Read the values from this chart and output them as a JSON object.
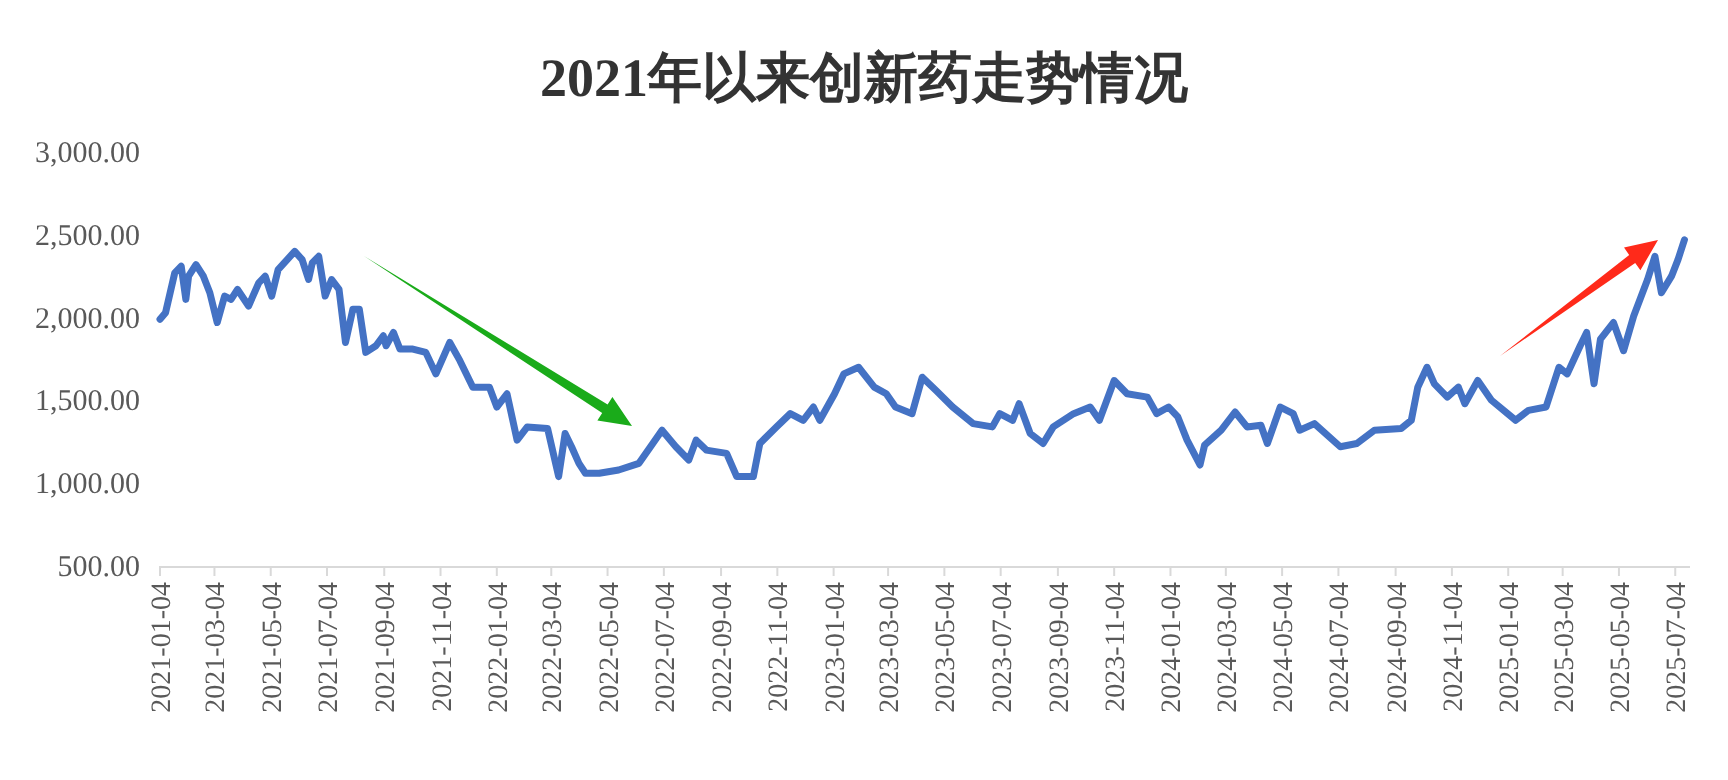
{
  "chart_data": {
    "type": "line",
    "title": "2021年以来创新药走势情况",
    "x": [
      "2021-01-04",
      "2021-01-10",
      "2021-01-20",
      "2021-01-27",
      "2021-02-01",
      "2021-02-04",
      "2021-02-12",
      "2021-02-20",
      "2021-02-27",
      "2021-03-07",
      "2021-03-15",
      "2021-03-22",
      "2021-03-29",
      "2021-04-10",
      "2021-04-21",
      "2021-04-28",
      "2021-05-05",
      "2021-05-12",
      "2021-05-30",
      "2021-06-07",
      "2021-06-14",
      "2021-06-18",
      "2021-06-25",
      "2021-07-02",
      "2021-07-09",
      "2021-07-17",
      "2021-07-24",
      "2021-08-01",
      "2021-08-08",
      "2021-08-15",
      "2021-08-26",
      "2021-09-03",
      "2021-09-06",
      "2021-09-14",
      "2021-09-21",
      "2021-10-05",
      "2021-10-19",
      "2021-10-30",
      "2021-11-14",
      "2021-11-25",
      "2021-12-09",
      "2021-12-27",
      "2022-01-04",
      "2022-01-15",
      "2022-01-26",
      "2022-02-06",
      "2022-02-28",
      "2022-03-12",
      "2022-03-19",
      "2022-03-26",
      "2022-04-03",
      "2022-04-10",
      "2022-04-25",
      "2022-05-16",
      "2022-06-07",
      "2022-06-22",
      "2022-07-02",
      "2022-07-17",
      "2022-07-31",
      "2022-08-08",
      "2022-08-19",
      "2022-09-10",
      "2022-09-21",
      "2022-10-09",
      "2022-10-16",
      "2022-11-03",
      "2022-11-18",
      "2022-12-02",
      "2022-12-13",
      "2022-12-20",
      "2023-01-05",
      "2023-01-15",
      "2023-01-31",
      "2023-02-17",
      "2023-03-02",
      "2023-03-12",
      "2023-03-30",
      "2023-04-10",
      "2023-04-25",
      "2023-05-13",
      "2023-06-04",
      "2023-06-25",
      "2023-07-03",
      "2023-07-17",
      "2023-07-24",
      "2023-08-05",
      "2023-08-19",
      "2023-08-30",
      "2023-09-21",
      "2023-10-09",
      "2023-10-19",
      "2023-11-04",
      "2023-11-18",
      "2023-12-10",
      "2023-12-20",
      "2024-01-02",
      "2024-01-12",
      "2024-01-22",
      "2024-02-05",
      "2024-02-10",
      "2024-02-28",
      "2024-03-14",
      "2024-03-27",
      "2024-04-11",
      "2024-04-18",
      "2024-05-02",
      "2024-05-16",
      "2024-05-23",
      "2024-06-08",
      "2024-07-06",
      "2024-07-24",
      "2024-08-12",
      "2024-09-10",
      "2024-09-21",
      "2024-09-28",
      "2024-10-08",
      "2024-10-16",
      "2024-10-30",
      "2024-11-11",
      "2024-11-18",
      "2024-12-02",
      "2024-12-17",
      "2025-01-12",
      "2025-01-26",
      "2025-02-14",
      "2025-02-28",
      "2025-03-09",
      "2025-03-23",
      "2025-03-30",
      "2025-04-07",
      "2025-04-14",
      "2025-04-28",
      "2025-05-09",
      "2025-05-20",
      "2025-06-04",
      "2025-06-12",
      "2025-06-19",
      "2025-06-30",
      "2025-07-07",
      "2025-07-14"
    ],
    "series": [
      {
        "color": "#4472c4",
        "values": [
          1990,
          2030,
          2270,
          2310,
          2110,
          2250,
          2320,
          2250,
          2150,
          1970,
          2130,
          2110,
          2170,
          2070,
          2210,
          2250,
          2130,
          2290,
          2400,
          2350,
          2230,
          2330,
          2370,
          2130,
          2230,
          2170,
          1850,
          2050,
          2050,
          1790,
          1830,
          1890,
          1830,
          1910,
          1810,
          1810,
          1790,
          1660,
          1850,
          1740,
          1580,
          1580,
          1460,
          1540,
          1260,
          1340,
          1330,
          1040,
          1300,
          1220,
          1120,
          1060,
          1060,
          1080,
          1120,
          1240,
          1320,
          1220,
          1140,
          1260,
          1200,
          1180,
          1040,
          1040,
          1240,
          1340,
          1420,
          1380,
          1460,
          1380,
          1540,
          1660,
          1700,
          1580,
          1540,
          1460,
          1420,
          1640,
          1560,
          1460,
          1360,
          1340,
          1420,
          1380,
          1480,
          1300,
          1240,
          1340,
          1420,
          1460,
          1380,
          1620,
          1540,
          1520,
          1420,
          1460,
          1400,
          1260,
          1110,
          1230,
          1320,
          1430,
          1340,
          1350,
          1240,
          1460,
          1420,
          1320,
          1360,
          1220,
          1240,
          1320,
          1330,
          1380,
          1580,
          1700,
          1600,
          1520,
          1580,
          1480,
          1620,
          1500,
          1380,
          1440,
          1460,
          1700,
          1660,
          1830,
          1910,
          1600,
          1870,
          1970,
          1800,
          2010,
          2230,
          2370,
          2150,
          2250,
          2350,
          2470
        ]
      }
    ],
    "xlim": [
      "2021-01-04",
      "2025-07-20"
    ],
    "xticks": [
      "2021-01-04",
      "2021-03-04",
      "2021-05-04",
      "2021-07-04",
      "2021-09-04",
      "2021-11-04",
      "2022-01-04",
      "2022-03-04",
      "2022-05-04",
      "2022-07-04",
      "2022-09-04",
      "2022-11-04",
      "2023-01-04",
      "2023-03-04",
      "2023-05-04",
      "2023-07-04",
      "2023-09-04",
      "2023-11-04",
      "2024-01-04",
      "2024-03-04",
      "2024-05-04",
      "2024-07-04",
      "2024-09-04",
      "2024-11-04",
      "2025-01-04",
      "2025-03-04",
      "2025-05-04",
      "2025-07-04"
    ],
    "ylim": [
      500,
      3000
    ],
    "yticks": [
      {
        "value": 500,
        "label": "500.00"
      },
      {
        "value": 1000,
        "label": "1,000.00"
      },
      {
        "value": 1500,
        "label": "1,500.00"
      },
      {
        "value": 2000,
        "label": "2,000.00"
      },
      {
        "value": 2500,
        "label": "2,500.00"
      },
      {
        "value": 3000,
        "label": "3,000.00"
      }
    ],
    "grid": false,
    "line_style": "solid"
  }
}
